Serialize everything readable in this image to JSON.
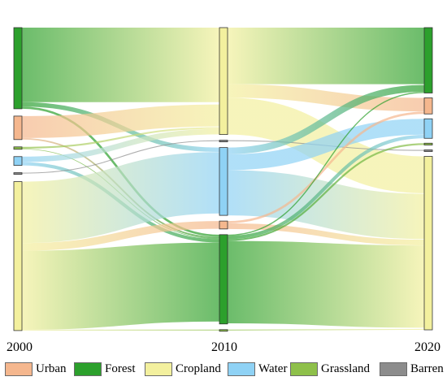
{
  "chart_data": {
    "type": "sankey",
    "title": "",
    "years": [
      "2000",
      "2010",
      "2020"
    ],
    "categories": [
      "Urban",
      "Forest",
      "Cropland",
      "Water",
      "Grassland",
      "Barren"
    ],
    "colors": {
      "Urban": "#f5b78e",
      "Forest": "#2ca02c",
      "Cropland": "#f3f09e",
      "Water": "#8fd2f5",
      "Grassland": "#8ec04a",
      "Barren": "#8c8c8c"
    },
    "node_order": {
      "2000": [
        "Forest",
        "Urban",
        "Grassland",
        "Water",
        "Barren",
        "Cropland"
      ],
      "2010": [
        "Cropland",
        "Barren",
        "Water",
        "Urban",
        "Forest",
        "Grassland"
      ],
      "2020": [
        "Forest",
        "Urban",
        "Water",
        "Grassland",
        "Barren",
        "Cropland"
      ]
    },
    "flows_2000_2010": [
      {
        "source": "Forest",
        "target": "Cropland",
        "value": 34
      },
      {
        "source": "Forest",
        "target": "Water",
        "value": 2
      },
      {
        "source": "Forest",
        "target": "Forest",
        "value": 1
      },
      {
        "source": "Urban",
        "target": "Cropland",
        "value": 10
      },
      {
        "source": "Urban",
        "target": "Forest",
        "value": 0.7
      },
      {
        "source": "Grassland",
        "target": "Cropland",
        "value": 0.8
      },
      {
        "source": "Grassland",
        "target": "Forest",
        "value": 0.3
      },
      {
        "source": "Water",
        "target": "Cropland",
        "value": 2.5
      },
      {
        "source": "Water",
        "target": "Forest",
        "value": 1.5
      },
      {
        "source": "Barren",
        "target": "Barren",
        "value": 0.4
      },
      {
        "source": "Cropland",
        "target": "Water",
        "value": 28
      },
      {
        "source": "Cropland",
        "target": "Urban",
        "value": 3.5
      },
      {
        "source": "Cropland",
        "target": "Forest",
        "value": 36
      },
      {
        "source": "Cropland",
        "target": "Grassland",
        "value": 0.4
      }
    ],
    "flows_2010_2020": [
      {
        "source": "Cropland",
        "target": "Forest",
        "value": 25
      },
      {
        "source": "Cropland",
        "target": "Urban",
        "value": 6
      },
      {
        "source": "Cropland",
        "target": "Cropland",
        "value": 16.3
      },
      {
        "source": "Barren",
        "target": "Barren",
        "value": 0.4
      },
      {
        "source": "Water",
        "target": "Forest",
        "value": 3
      },
      {
        "source": "Water",
        "target": "Water",
        "value": 7
      },
      {
        "source": "Water",
        "target": "Cropland",
        "value": 20
      },
      {
        "source": "Urban",
        "target": "Urban",
        "value": 1
      },
      {
        "source": "Urban",
        "target": "Cropland",
        "value": 2.5
      },
      {
        "source": "Forest",
        "target": "Forest",
        "value": 0.5
      },
      {
        "source": "Forest",
        "target": "Water",
        "value": 1.5
      },
      {
        "source": "Forest",
        "target": "Grassland",
        "value": 0.8
      },
      {
        "source": "Forest",
        "target": "Cropland",
        "value": 36.4
      },
      {
        "source": "Grassland",
        "target": "Cropland",
        "value": 0.4
      }
    ]
  },
  "legend": {
    "items": [
      {
        "label": "Urban",
        "color": "#f5b78e"
      },
      {
        "label": "Forest",
        "color": "#2ca02c"
      },
      {
        "label": "Cropland",
        "color": "#f3f09e"
      },
      {
        "label": "Water",
        "color": "#8fd2f5"
      },
      {
        "label": "Grassland",
        "color": "#8ec04a"
      },
      {
        "label": "Barren",
        "color": "#8c8c8c"
      }
    ]
  }
}
